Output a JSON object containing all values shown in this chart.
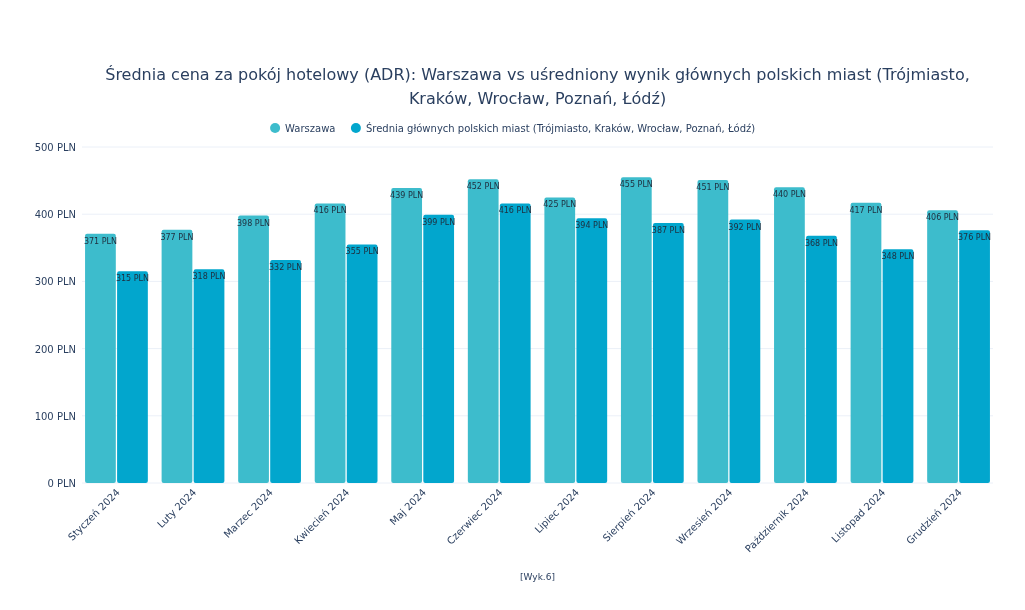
{
  "chart_data": {
    "type": "bar",
    "title": "Średnia cena za pokój hotelowy (ADR): Warszawa vs uśredniony wynik głównych polskich miast (Trójmiasto, Kraków, Wrocław, Poznań, Łódź)",
    "categories": [
      "Styczeń 2024",
      "Luty 2024",
      "Marzec 2024",
      "Kwiecień 2024",
      "Maj 2024",
      "Czerwiec 2024",
      "Lipiec 2024",
      "Sierpień 2024",
      "Wrzesień 2024",
      "Październik 2024",
      "Listopad 2024",
      "Grudzień 2024"
    ],
    "series": [
      {
        "name": "Warszawa",
        "color": "#3dbccc",
        "values": [
          371,
          377,
          398,
          416,
          439,
          452,
          425,
          455,
          451,
          440,
          417,
          406
        ],
        "value_labels": [
          "371 PLN",
          "377 PLN",
          "398 PLN",
          "416 PLN",
          "439 PLN",
          "452 PLN",
          "425 PLN",
          "455 PLN",
          "451 PLN",
          "440 PLN",
          "417 PLN",
          "406 PLN"
        ]
      },
      {
        "name": "Średnia głównych polskich miast (Trójmiasto, Kraków, Wrocław, Poznań, Łódź)",
        "color": "#02a6cd",
        "values": [
          315,
          318,
          332,
          355,
          399,
          416,
          394,
          387,
          392,
          368,
          348,
          376
        ],
        "value_labels": [
          "315 PLN",
          "318 PLN",
          "332 PLN",
          "355 PLN",
          "399 PLN",
          "416 PLN",
          "394 PLN",
          "387 PLN",
          "392 PLN",
          "368 PLN",
          "348 PLN",
          "376 PLN"
        ]
      }
    ],
    "ylim": [
      0,
      500
    ],
    "yticks": [
      {
        "value": 0,
        "label": "0 PLN"
      },
      {
        "value": 100,
        "label": "100 PLN"
      },
      {
        "value": 200,
        "label": "200 PLN"
      },
      {
        "value": 300,
        "label": "300 PLN"
      },
      {
        "value": 400,
        "label": "400 PLN"
      },
      {
        "value": 500,
        "label": "500 PLN"
      }
    ],
    "grid": "y",
    "legend": "top",
    "annotations": [
      "[Wyk.6]"
    ]
  }
}
